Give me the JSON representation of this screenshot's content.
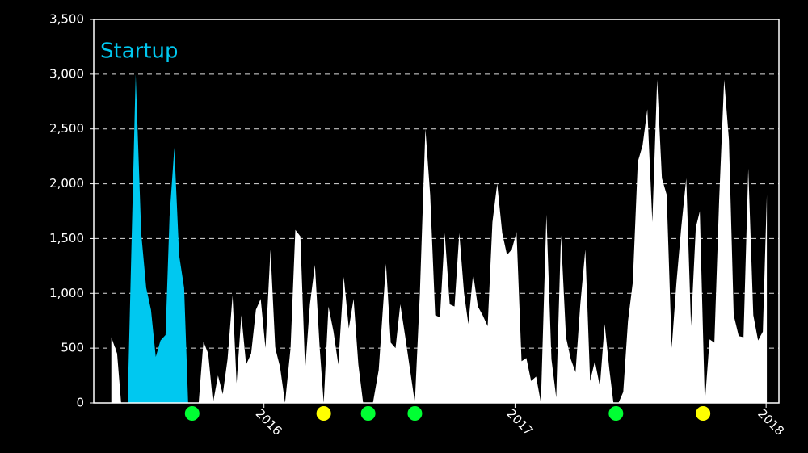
{
  "chart_data": {
    "type": "area",
    "xlim": [
      2015.322,
      2018.051
    ],
    "xticks": [
      2016,
      2017,
      2018
    ],
    "ylim": [
      0,
      3500
    ],
    "yticks": [
      0,
      500,
      {
        "value": 1000,
        "label": "1,000"
      },
      {
        "value": 1500,
        "label": "1,500"
      },
      {
        "value": 2000,
        "label": "2,000"
      },
      {
        "value": 2500,
        "label": "2,500"
      },
      {
        "value": 3000,
        "label": "3,000"
      },
      {
        "value": 3500,
        "label": "3,500"
      }
    ],
    "grid": true,
    "series": [
      {
        "color": "#ffffff",
        "x": [
          2015.392,
          2015.415,
          2015.431,
          2015.453,
          2015.72,
          2015.74,
          2015.759,
          2015.778,
          2015.797,
          2015.817,
          2015.836,
          2015.855,
          2015.875,
          2015.891,
          2015.91,
          2015.929,
          2015.949,
          2015.968,
          2015.987,
          2016.006,
          2016.026,
          2016.045,
          2016.064,
          2016.084,
          2016.106,
          2016.125,
          2016.145,
          2016.164,
          2016.183,
          2016.203,
          2016.222,
          2016.238,
          2016.257,
          2016.277,
          2016.296,
          2016.318,
          2016.338,
          2016.357,
          2016.376,
          2016.395,
          2016.415,
          2016.434,
          2016.457,
          2016.486,
          2016.505,
          2016.524,
          2016.543,
          2016.563,
          2016.582,
          2016.601,
          2016.621,
          2016.643,
          2016.662,
          2016.682,
          2016.701,
          2016.72,
          2016.74,
          2016.759,
          2016.778,
          2016.797,
          2016.814,
          2016.833,
          2016.852,
          2016.871,
          2016.891,
          2016.91,
          2016.929,
          2016.949,
          2016.968,
          2016.987,
          2017.006,
          2017.026,
          2017.045,
          2017.064,
          2017.084,
          2017.103,
          2017.125,
          2017.145,
          2017.164,
          2017.183,
          2017.203,
          2017.222,
          2017.241,
          2017.26,
          2017.28,
          2017.299,
          2017.318,
          2017.338,
          2017.357,
          2017.376,
          2017.392,
          2017.412,
          2017.431,
          2017.45,
          2017.469,
          2017.489,
          2017.508,
          2017.527,
          2017.547,
          2017.566,
          2017.585,
          2017.604,
          2017.624,
          2017.643,
          2017.662,
          2017.682,
          2017.701,
          2017.72,
          2017.736,
          2017.756,
          2017.775,
          2017.794,
          2017.813,
          2017.833,
          2017.852,
          2017.871,
          2017.891,
          2017.91,
          2017.929,
          2017.949,
          2017.968,
          2017.987,
          2018.003
        ],
        "values": [
          600,
          450,
          0,
          0,
          0,
          0,
          560,
          450,
          0,
          250,
          80,
          400,
          980,
          180,
          800,
          350,
          450,
          850,
          950,
          500,
          1400,
          500,
          330,
          0,
          500,
          1580,
          1520,
          300,
          900,
          1260,
          500,
          0,
          880,
          650,
          350,
          1150,
          680,
          950,
          350,
          0,
          0,
          0,
          300,
          1270,
          550,
          500,
          900,
          600,
          300,
          0,
          1000,
          2500,
          1900,
          800,
          780,
          1550,
          900,
          880,
          1550,
          1000,
          720,
          1180,
          880,
          800,
          700,
          1650,
          2000,
          1550,
          1350,
          1400,
          1560,
          380,
          410,
          200,
          240,
          0,
          1720,
          400,
          50,
          1530,
          600,
          400,
          280,
          900,
          1400,
          200,
          380,
          150,
          720,
          300,
          0,
          0,
          100,
          750,
          1100,
          2200,
          2350,
          2680,
          1650,
          2950,
          2050,
          1900,
          500,
          1100,
          1600,
          2050,
          700,
          1600,
          1750,
          0,
          580,
          550,
          1850,
          2950,
          2400,
          800,
          610,
          600,
          2140,
          800,
          570,
          650,
          1900
        ]
      },
      {
        "name": "Startup",
        "color": "#00c8f0",
        "x": [
          2015.457,
          2015.489,
          2015.511,
          2015.531,
          2015.55,
          2015.569,
          2015.588,
          2015.608,
          2015.624,
          2015.643,
          2015.662,
          2015.682,
          2015.698
        ],
        "values": [
          0,
          3000,
          1550,
          1050,
          850,
          420,
          570,
          620,
          1700,
          2330,
          1350,
          1050,
          0
        ]
      }
    ],
    "markers": [
      {
        "x": 2015.714,
        "color": "#00ff33"
      },
      {
        "x": 2016.238,
        "color": "#ffff00"
      },
      {
        "x": 2016.415,
        "color": "#00ff33"
      },
      {
        "x": 2016.601,
        "color": "#00ff33"
      },
      {
        "x": 2017.402,
        "color": "#00ff33"
      },
      {
        "x": 2017.749,
        "color": "#ffff00"
      }
    ]
  }
}
